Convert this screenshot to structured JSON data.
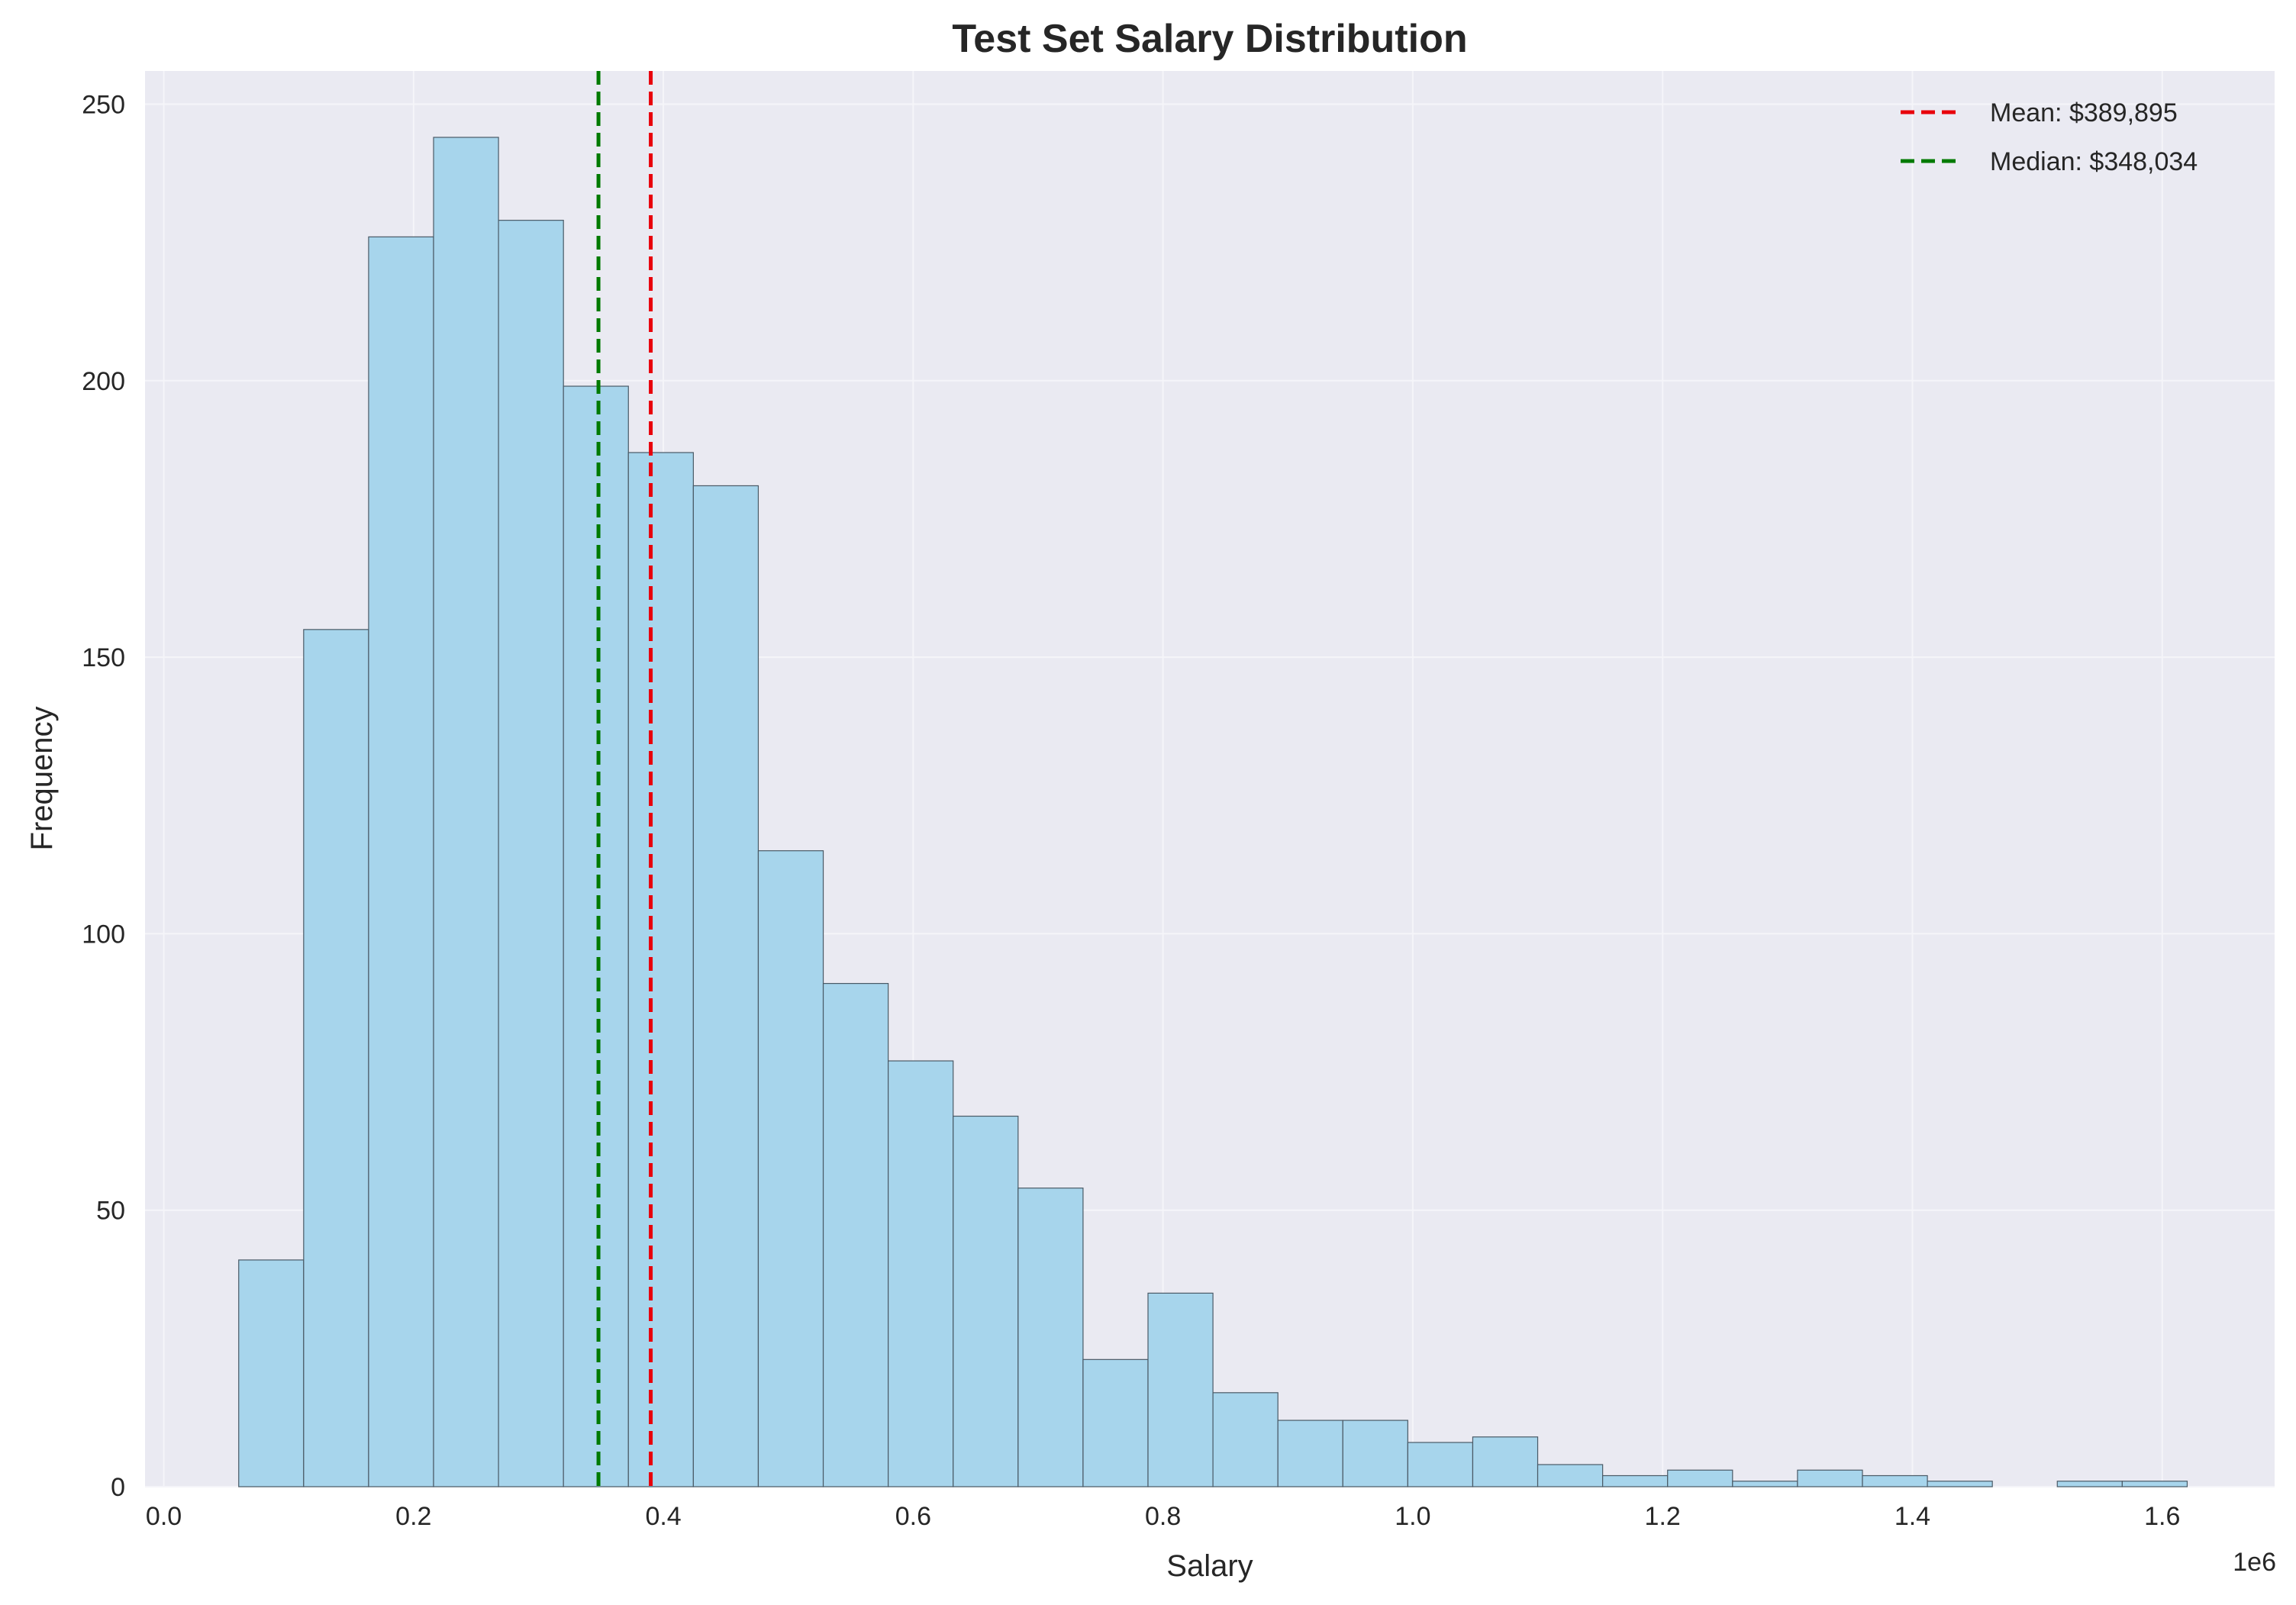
{
  "chart_data": {
    "type": "bar",
    "title": "Test Set Salary Distribution",
    "xlabel": "Salary",
    "ylabel": "Frequency",
    "x_offset_label": "1e6",
    "xlim": [
      -0.015,
      1.69
    ],
    "ylim": [
      0,
      256
    ],
    "x_ticks": [
      0.0,
      0.2,
      0.4,
      0.6,
      0.8,
      1.0,
      1.2,
      1.4,
      1.6
    ],
    "x_tick_labels": [
      "0.0",
      "0.2",
      "0.4",
      "0.6",
      "0.8",
      "1.0",
      "1.2",
      "1.4",
      "1.6"
    ],
    "y_ticks": [
      0,
      50,
      100,
      150,
      200,
      250
    ],
    "y_tick_labels": [
      "0",
      "50",
      "100",
      "150",
      "200",
      "250"
    ],
    "grid": true,
    "legend_position": "top-right",
    "bin_edges": [
      0.06,
      0.112,
      0.164,
      0.216,
      0.268,
      0.32,
      0.372,
      0.424,
      0.476,
      0.528,
      0.58,
      0.632,
      0.684,
      0.736,
      0.788,
      0.84,
      0.892,
      0.944,
      0.996,
      1.048,
      1.1,
      1.152,
      1.204,
      1.256,
      1.308,
      1.36,
      1.412,
      1.464,
      1.516,
      1.568,
      1.62
    ],
    "values": [
      41,
      155,
      226,
      244,
      229,
      199,
      187,
      181,
      115,
      91,
      77,
      67,
      54,
      23,
      35,
      17,
      12,
      12,
      8,
      9,
      4,
      2,
      3,
      1,
      3,
      2,
      1,
      0,
      1,
      1
    ],
    "lines": [
      {
        "name": "Mean: $389,895",
        "x": 0.389895,
        "color": "#e8000b"
      },
      {
        "name": "Median: $348,034",
        "x": 0.348034,
        "color": "#007a00"
      }
    ],
    "colors": {
      "bar_fill": "#a7d5ec",
      "bar_edge": "#4a5a66",
      "plot_background": "#eaeaf2",
      "grid": "#f5f5f9"
    }
  }
}
